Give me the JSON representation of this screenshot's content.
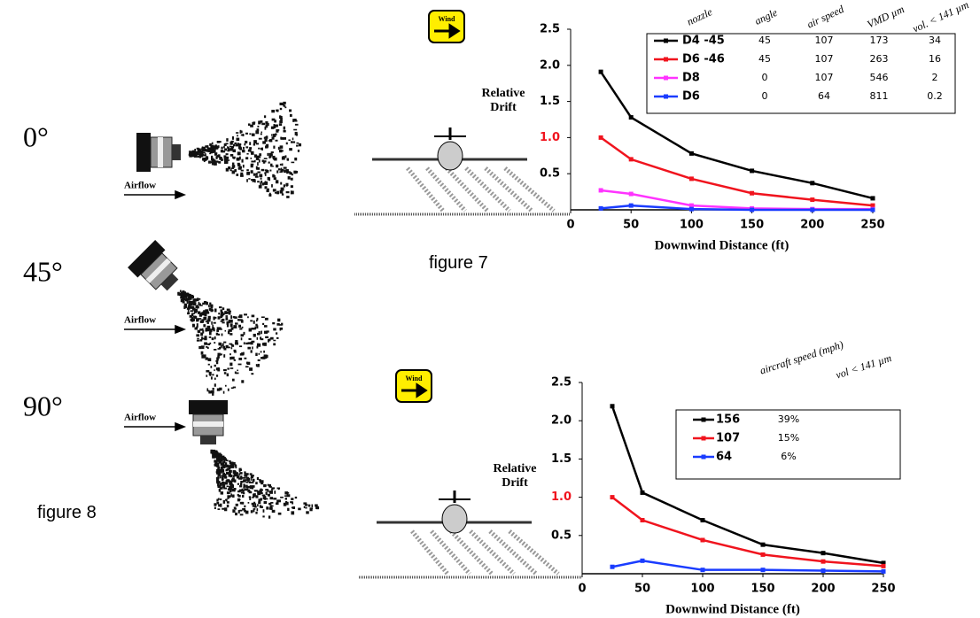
{
  "chart_data": [
    {
      "type": "line",
      "caption": "figure 7",
      "annotation": "Wind",
      "ylabel": "Relative Drift",
      "xlabel": "Downwind Distance (ft)",
      "x": [
        25,
        50,
        100,
        150,
        200,
        250
      ],
      "xlim": [
        0,
        250
      ],
      "xticks": [
        0,
        50,
        100,
        150,
        200,
        250
      ],
      "ylim": [
        0,
        2.5
      ],
      "yticks": [
        0.5,
        {
          "value": 1,
          "label": "1.0"
        },
        1.5,
        {
          "value": 2,
          "label": "2.0"
        },
        2.5
      ],
      "legend_headers": [
        "nozzle",
        "angle",
        "air speed",
        "VMD µm",
        "vol. < 141 µm"
      ],
      "series": [
        {
          "name": "D4 -45",
          "color": "#000000",
          "values": [
            1.91,
            1.28,
            0.78,
            0.54,
            0.37,
            0.16
          ],
          "legend_values": [
            45,
            107,
            173,
            34
          ]
        },
        {
          "name": "D6 -46",
          "color": "#f0141e",
          "values": [
            1.0,
            0.7,
            0.43,
            0.23,
            0.14,
            0.06
          ],
          "legend_values": [
            45,
            107,
            263,
            16
          ]
        },
        {
          "name": "D8",
          "color": "#ff33ff",
          "values": [
            0.27,
            0.22,
            0.06,
            0.02,
            0.01,
            0.01
          ],
          "legend_values": [
            0,
            107,
            546,
            2
          ]
        },
        {
          "name": "D6",
          "color": "#1a3cff",
          "values": [
            0.02,
            0.06,
            0.01,
            0,
            0,
            0
          ],
          "legend_values": [
            0,
            64,
            811,
            0.2
          ]
        }
      ]
    },
    {
      "type": "line",
      "annotation": "Wind",
      "ylabel": "Relative Drift",
      "xlabel": "Downwind Distance (ft)",
      "x": [
        25,
        50,
        100,
        150,
        200,
        250
      ],
      "xlim": [
        0,
        250
      ],
      "xticks": [
        0,
        50,
        100,
        150,
        200,
        250
      ],
      "ylim": [
        0,
        2.5
      ],
      "yticks": [
        0.5,
        {
          "value": 1,
          "label": "1.0"
        },
        1.5,
        {
          "value": 2,
          "label": "2.0"
        },
        2.5
      ],
      "legend_headers": [
        "aircraft speed (mph)",
        "vol < 141 µm"
      ],
      "series": [
        {
          "name": "156",
          "color": "#000000",
          "values": [
            2.19,
            1.06,
            0.7,
            0.38,
            0.27,
            0.14
          ],
          "legend_values": [
            "39%"
          ]
        },
        {
          "name": "107",
          "color": "#f0141e",
          "values": [
            1.0,
            0.7,
            0.44,
            0.25,
            0.16,
            0.1
          ],
          "legend_values": [
            "15%"
          ]
        },
        {
          "name": "64",
          "color": "#1a3cff",
          "values": [
            0.09,
            0.17,
            0.05,
            0.05,
            0.04,
            0.03
          ],
          "legend_values": [
            "6%"
          ]
        }
      ]
    }
  ],
  "nozzle_figure": {
    "angles": [
      "0°",
      "45°",
      "90°"
    ],
    "airflow_label": "Airflow",
    "caption": "figure 8"
  }
}
